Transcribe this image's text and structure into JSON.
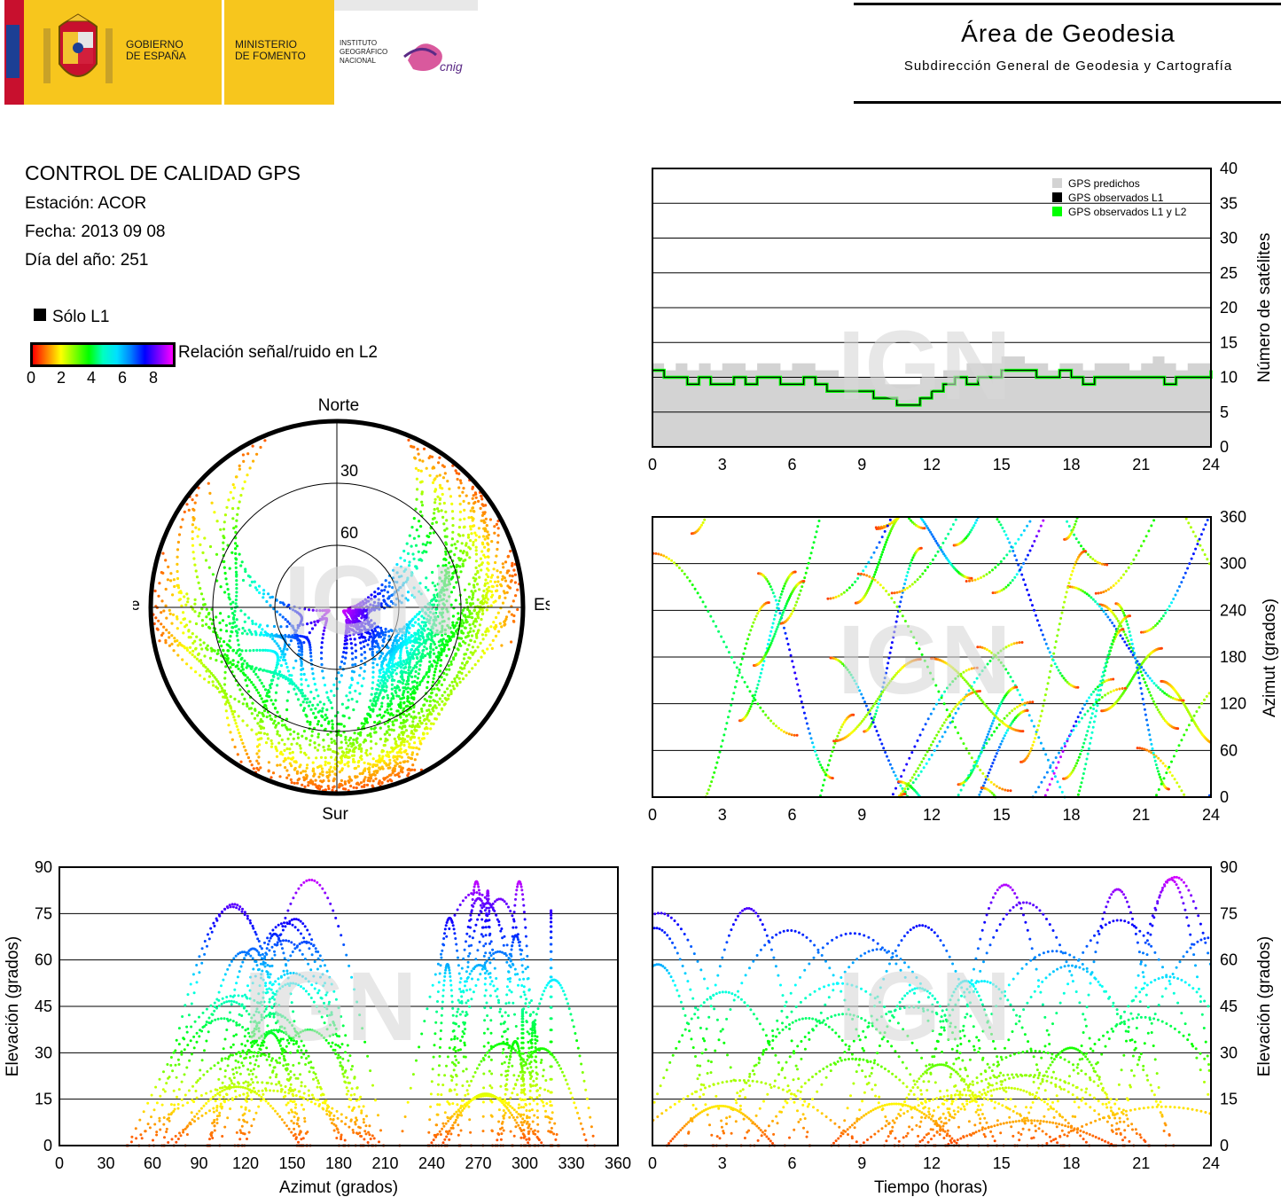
{
  "header": {
    "gov_line1": "GOBIERNO",
    "gov_line2": "DE ESPAÑA",
    "min_line1": "MINISTERIO",
    "min_line2": "DE FOMENTO",
    "ign_line1": "INSTITUTO",
    "ign_line2": "GEOGRÁFICO",
    "ign_line3": "NACIONAL",
    "cnig_logo": "cnig",
    "area_title": "Área de Geodesia",
    "area_subtitle": "Subdirección General de Geodesia y Cartografía"
  },
  "info": {
    "title": "CONTROL DE CALIDAD GPS",
    "station": "Estación: ACOR",
    "date": "Fecha: 2013 09 08",
    "doy": "Día del año: 251"
  },
  "legend": {
    "l1_only": "Sólo L1",
    "snr_label": "Relación señal/ruido en L2",
    "snr_ticks": [
      "0",
      "2",
      "4",
      "6",
      "8"
    ],
    "snr_colors": [
      "#ff0000",
      "#ffff00",
      "#00ff00",
      "#00ffff",
      "#0000ff",
      "#ff00ff"
    ]
  },
  "watermark": "IGN",
  "chart_data": [
    {
      "id": "satellite-count",
      "type": "area",
      "x_ticks": [
        "0",
        "3",
        "6",
        "9",
        "12",
        "15",
        "18",
        "21",
        "24"
      ],
      "xlim": [
        0,
        24
      ],
      "ylim": [
        0,
        40
      ],
      "y_ticks": [
        "0",
        "5",
        "10",
        "15",
        "20",
        "25",
        "30",
        "35",
        "40"
      ],
      "ylabel": "Número de satélites",
      "grid": true,
      "legend_position": "top-right",
      "legend": [
        {
          "name": "GPS predichos",
          "color": "#d3d3d3"
        },
        {
          "name": "GPS observados L1",
          "color": "#000000"
        },
        {
          "name": "GPS observados L1 y L2",
          "color": "#00ff00"
        }
      ],
      "series": [
        {
          "name": "GPS predichos",
          "x": [
            0,
            0.5,
            1,
            1.5,
            2,
            2.5,
            3,
            3.5,
            4,
            4.5,
            5,
            5.5,
            6,
            6.5,
            7,
            7.5,
            8,
            8.5,
            9,
            9.5,
            10,
            10.5,
            11,
            11.5,
            12,
            12.5,
            13,
            13.5,
            14,
            14.5,
            15,
            15.5,
            16,
            16.5,
            17,
            17.5,
            18,
            18.5,
            19,
            19.5,
            20,
            20.5,
            21,
            21.5,
            22,
            22.5,
            23,
            23.5,
            24
          ],
          "values": [
            12,
            11,
            12,
            11,
            12,
            11,
            12,
            12,
            11,
            12,
            12,
            11,
            12,
            12,
            11,
            11,
            10,
            10,
            10,
            10,
            9,
            9,
            9,
            10,
            10,
            11,
            11,
            12,
            12,
            12,
            13,
            13,
            12,
            12,
            11,
            12,
            12,
            11,
            12,
            12,
            12,
            11,
            12,
            13,
            12,
            11,
            12,
            12,
            13
          ]
        },
        {
          "name": "GPS observados L1",
          "x": [
            0,
            0.5,
            1,
            1.5,
            2,
            2.5,
            3,
            3.5,
            4,
            4.5,
            5,
            5.5,
            6,
            6.5,
            7,
            7.5,
            8,
            8.5,
            9,
            9.5,
            10,
            10.5,
            11,
            11.5,
            12,
            12.5,
            13,
            13.5,
            14,
            14.5,
            15,
            15.5,
            16,
            16.5,
            17,
            17.5,
            18,
            18.5,
            19,
            19.5,
            20,
            20.5,
            21,
            21.5,
            22,
            22.5,
            23,
            23.5,
            24
          ],
          "values": [
            11,
            10,
            10,
            9,
            10,
            9,
            9,
            10,
            9,
            10,
            10,
            9,
            9,
            10,
            9,
            8,
            8,
            8,
            8,
            7,
            7,
            6,
            6,
            7,
            8,
            9,
            10,
            9,
            10,
            10,
            11,
            11,
            11,
            10,
            10,
            11,
            10,
            9,
            10,
            10,
            10,
            10,
            10,
            10,
            9,
            10,
            10,
            10,
            11
          ]
        },
        {
          "name": "GPS observados L1 y L2",
          "x": [
            0,
            0.5,
            1,
            1.5,
            2,
            2.5,
            3,
            3.5,
            4,
            4.5,
            5,
            5.5,
            6,
            6.5,
            7,
            7.5,
            8,
            8.5,
            9,
            9.5,
            10,
            10.5,
            11,
            11.5,
            12,
            12.5,
            13,
            13.5,
            14,
            14.5,
            15,
            15.5,
            16,
            16.5,
            17,
            17.5,
            18,
            18.5,
            19,
            19.5,
            20,
            20.5,
            21,
            21.5,
            22,
            22.5,
            23,
            23.5,
            24
          ],
          "values": [
            11,
            10,
            10,
            9,
            10,
            9,
            9,
            10,
            9,
            10,
            10,
            9,
            9,
            10,
            9,
            8,
            8,
            8,
            8,
            7,
            7,
            6,
            6,
            7,
            8,
            9,
            10,
            9,
            10,
            10,
            11,
            11,
            11,
            10,
            10,
            11,
            10,
            9,
            10,
            10,
            10,
            10,
            10,
            10,
            9,
            10,
            10,
            10,
            11
          ]
        }
      ]
    },
    {
      "id": "skyplot",
      "type": "scatter",
      "projection": "polar",
      "directions": {
        "north": "Norte",
        "south": "Sur",
        "east": "Este",
        "west": "Oeste"
      },
      "elevation_rings": [
        "30",
        "60"
      ]
    },
    {
      "id": "azimuth-vs-time",
      "type": "scatter",
      "x_ticks": [
        "0",
        "3",
        "6",
        "9",
        "12",
        "15",
        "18",
        "21",
        "24"
      ],
      "xlim": [
        0,
        24
      ],
      "ylim": [
        0,
        360
      ],
      "y_ticks": [
        "0",
        "60",
        "120",
        "180",
        "240",
        "300",
        "360"
      ],
      "ylabel": "Azimut (grados)",
      "grid": true
    },
    {
      "id": "elevation-vs-azimuth",
      "type": "scatter",
      "x_ticks": [
        "0",
        "30",
        "60",
        "90",
        "120",
        "150",
        "180",
        "210",
        "240",
        "270",
        "300",
        "330",
        "360"
      ],
      "xlim": [
        0,
        360
      ],
      "ylim": [
        0,
        90
      ],
      "y_ticks": [
        "0",
        "15",
        "30",
        "45",
        "60",
        "75",
        "90"
      ],
      "xlabel": "Azimut (grados)",
      "ylabel": "Elevación (grados)",
      "grid": true
    },
    {
      "id": "elevation-vs-time",
      "type": "scatter",
      "x_ticks": [
        "0",
        "3",
        "6",
        "9",
        "12",
        "15",
        "18",
        "21",
        "24"
      ],
      "xlim": [
        0,
        24
      ],
      "ylim": [
        0,
        90
      ],
      "y_ticks": [
        "0",
        "15",
        "30",
        "45",
        "60",
        "75",
        "90"
      ],
      "xlabel": "Tiempo (horas)",
      "ylabel": "Elevación (grados)",
      "grid": true
    }
  ]
}
